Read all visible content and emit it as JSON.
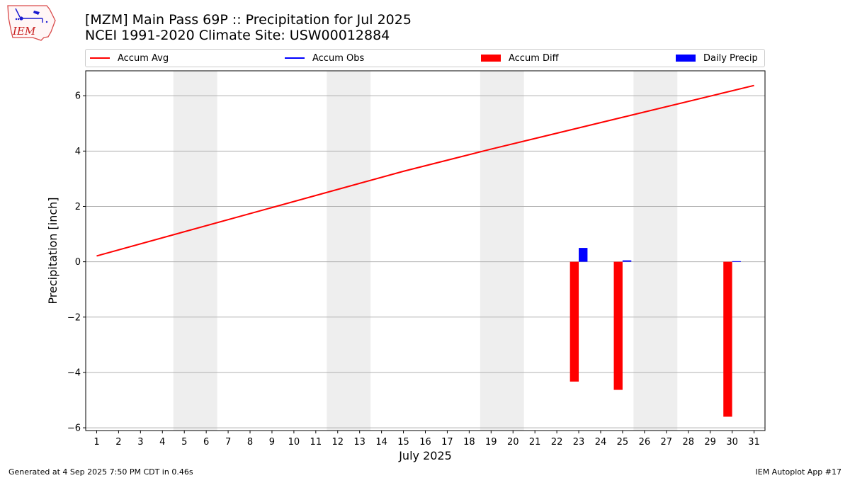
{
  "header": {
    "title_line1": "[MZM] Main Pass 69P :: Precipitation for Jul 2025",
    "title_line2": "NCEI 1991-2020 Climate Site: USW00012884",
    "logo_text": "IEM"
  },
  "legend": {
    "accum_avg": "Accum Avg",
    "accum_obs": "Accum Obs",
    "accum_diff": "Accum Diff",
    "daily_precip": "Daily Precip"
  },
  "footer": {
    "generated": "Generated at 4 Sep 2025 7:50 PM CDT in 0.46s",
    "app": "IEM Autoplot App #17"
  },
  "colors": {
    "accum_avg": "#ff0000",
    "accum_obs": "#0000ff",
    "accum_diff": "#ff0000",
    "daily_precip": "#0000ff",
    "weekend_shade": "#eeeeee",
    "grid": "#b0b0b0"
  },
  "chart_data": {
    "type": "bar",
    "xlabel": "July 2025",
    "ylabel": "Precipitation [inch]",
    "xlim": [
      0.5,
      31.5
    ],
    "ylim": [
      -6.1,
      6.9
    ],
    "yticks": [
      -6,
      -4,
      -2,
      0,
      2,
      4,
      6
    ],
    "ytick_labels": [
      "−6",
      "−4",
      "−2",
      "0",
      "2",
      "4",
      "6"
    ],
    "xticks": [
      1,
      2,
      3,
      4,
      5,
      6,
      7,
      8,
      9,
      10,
      11,
      12,
      13,
      14,
      15,
      16,
      17,
      18,
      19,
      20,
      21,
      22,
      23,
      24,
      25,
      26,
      27,
      28,
      29,
      30,
      31
    ],
    "grid": "horizontal",
    "legend_position": "top",
    "weekend_shading": [
      [
        4.5,
        6.5
      ],
      [
        11.5,
        13.5
      ],
      [
        18.5,
        20.5
      ],
      [
        25.5,
        27.5
      ]
    ],
    "series": [
      {
        "name": "Accum Avg",
        "type": "line",
        "x": [
          1,
          15,
          19,
          25,
          31
        ],
        "values": [
          0.21,
          3.27,
          4.07,
          5.22,
          6.37
        ]
      },
      {
        "name": "Accum Obs",
        "type": "line",
        "x": [],
        "values": []
      },
      {
        "name": "Accum Diff",
        "type": "bar",
        "x": [
          23,
          25,
          30
        ],
        "values": [
          -4.33,
          -4.63,
          -5.6
        ]
      },
      {
        "name": "Daily Precip",
        "type": "bar",
        "x": [
          23,
          25,
          30
        ],
        "values": [
          0.5,
          0.05,
          0.02
        ]
      }
    ]
  }
}
